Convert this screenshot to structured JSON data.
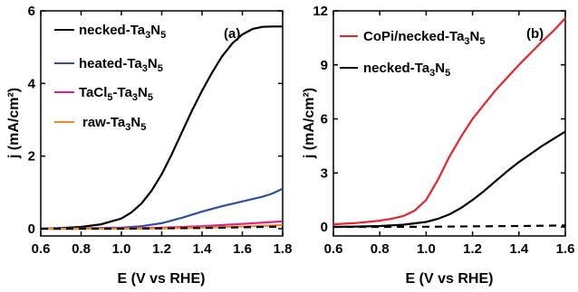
{
  "chart_data": [
    {
      "panel": "(a)",
      "type": "line",
      "xlabel": "E (V vs RHE)",
      "ylabel": "j (mA/cm²)",
      "xlim": [
        0.6,
        1.8
      ],
      "ylim": [
        -0.2,
        6.0
      ],
      "xticks": [
        "0.6",
        "0.8",
        "1.0",
        "1.2",
        "1.4",
        "1.6",
        "1.8"
      ],
      "yticks": [
        "0",
        "2",
        "4",
        "6"
      ],
      "xtick_values": [
        0.6,
        0.8,
        1.0,
        1.2,
        1.4,
        1.6,
        1.8
      ],
      "ytick_values": [
        0,
        2,
        4,
        6
      ],
      "legend_position": "top-left",
      "series": [
        {
          "name": "necked-Ta3N5",
          "color": "#000000",
          "dash": "solid",
          "x": [
            0.6,
            0.7,
            0.8,
            0.9,
            1.0,
            1.05,
            1.1,
            1.15,
            1.2,
            1.25,
            1.3,
            1.35,
            1.4,
            1.45,
            1.5,
            1.55,
            1.6,
            1.65,
            1.7,
            1.75,
            1.8
          ],
          "y": [
            0.0,
            0.02,
            0.05,
            0.12,
            0.28,
            0.45,
            0.7,
            1.05,
            1.5,
            2.05,
            2.65,
            3.25,
            3.8,
            4.3,
            4.75,
            5.1,
            5.35,
            5.5,
            5.56,
            5.57,
            5.57
          ]
        },
        {
          "name": "heated-Ta3N5",
          "color": "#2e4da6",
          "dash": "solid",
          "x": [
            0.6,
            0.8,
            1.0,
            1.1,
            1.2,
            1.3,
            1.4,
            1.5,
            1.6,
            1.7,
            1.75,
            1.8
          ],
          "y": [
            0.0,
            0.01,
            0.03,
            0.07,
            0.15,
            0.3,
            0.47,
            0.62,
            0.75,
            0.88,
            0.97,
            1.1
          ]
        },
        {
          "name": "TaCl5-Ta3N5",
          "color": "#e0208a",
          "dash": "solid",
          "x": [
            0.6,
            0.8,
            1.0,
            1.2,
            1.4,
            1.6,
            1.8
          ],
          "y": [
            0.0,
            0.0,
            0.01,
            0.03,
            0.07,
            0.13,
            0.2
          ]
        },
        {
          "name": "raw-Ta3N5",
          "color": "#f08a1c",
          "dash": "solid",
          "x": [
            0.6,
            0.8,
            1.0,
            1.2,
            1.4,
            1.6,
            1.8
          ],
          "y": [
            0.0,
            0.0,
            0.0,
            0.01,
            0.03,
            0.06,
            0.1
          ]
        },
        {
          "name": "",
          "color": "#000000",
          "dash": "dashed",
          "x": [
            0.6,
            0.8,
            1.0,
            1.2,
            1.4,
            1.6,
            1.8
          ],
          "y": [
            0.0,
            0.0,
            0.0,
            0.01,
            0.02,
            0.04,
            0.06
          ]
        }
      ]
    },
    {
      "panel": "(b)",
      "type": "line",
      "xlabel": "E (V vs RHE)",
      "ylabel": "j (mA/cm²)",
      "xlim": [
        0.6,
        1.6
      ],
      "ylim": [
        -0.5,
        12.0
      ],
      "xticks": [
        "0.6",
        "0.8",
        "1.0",
        "1.2",
        "1.4",
        "1.6"
      ],
      "yticks": [
        "0",
        "3",
        "6",
        "9",
        "12"
      ],
      "xtick_values": [
        0.6,
        0.8,
        1.0,
        1.2,
        1.4,
        1.6
      ],
      "ytick_values": [
        0,
        3,
        6,
        9,
        12
      ],
      "legend_position": "top-left",
      "series": [
        {
          "name": "CoPi/necked-Ta3N5",
          "color": "#e8232a",
          "dash": "solid",
          "x": [
            0.6,
            0.7,
            0.8,
            0.85,
            0.9,
            0.95,
            1.0,
            1.05,
            1.1,
            1.15,
            1.2,
            1.3,
            1.4,
            1.5,
            1.55,
            1.6
          ],
          "y": [
            0.15,
            0.22,
            0.35,
            0.45,
            0.6,
            0.9,
            1.5,
            2.6,
            3.9,
            5.0,
            6.0,
            7.6,
            9.0,
            10.3,
            10.9,
            11.6
          ]
        },
        {
          "name": "necked-Ta3N5",
          "color": "#000000",
          "dash": "solid",
          "x": [
            0.6,
            0.7,
            0.8,
            0.9,
            1.0,
            1.05,
            1.1,
            1.15,
            1.2,
            1.25,
            1.3,
            1.35,
            1.4,
            1.45,
            1.5,
            1.55,
            1.6
          ],
          "y": [
            0.0,
            0.02,
            0.05,
            0.12,
            0.28,
            0.45,
            0.7,
            1.05,
            1.5,
            2.0,
            2.55,
            3.1,
            3.6,
            4.05,
            4.5,
            4.9,
            5.3
          ]
        },
        {
          "name": "",
          "color": "#000000",
          "dash": "dashed",
          "x": [
            0.6,
            0.8,
            1.0,
            1.2,
            1.4,
            1.6
          ],
          "y": [
            0.0,
            0.0,
            0.01,
            0.03,
            0.05,
            0.08
          ]
        }
      ]
    }
  ]
}
